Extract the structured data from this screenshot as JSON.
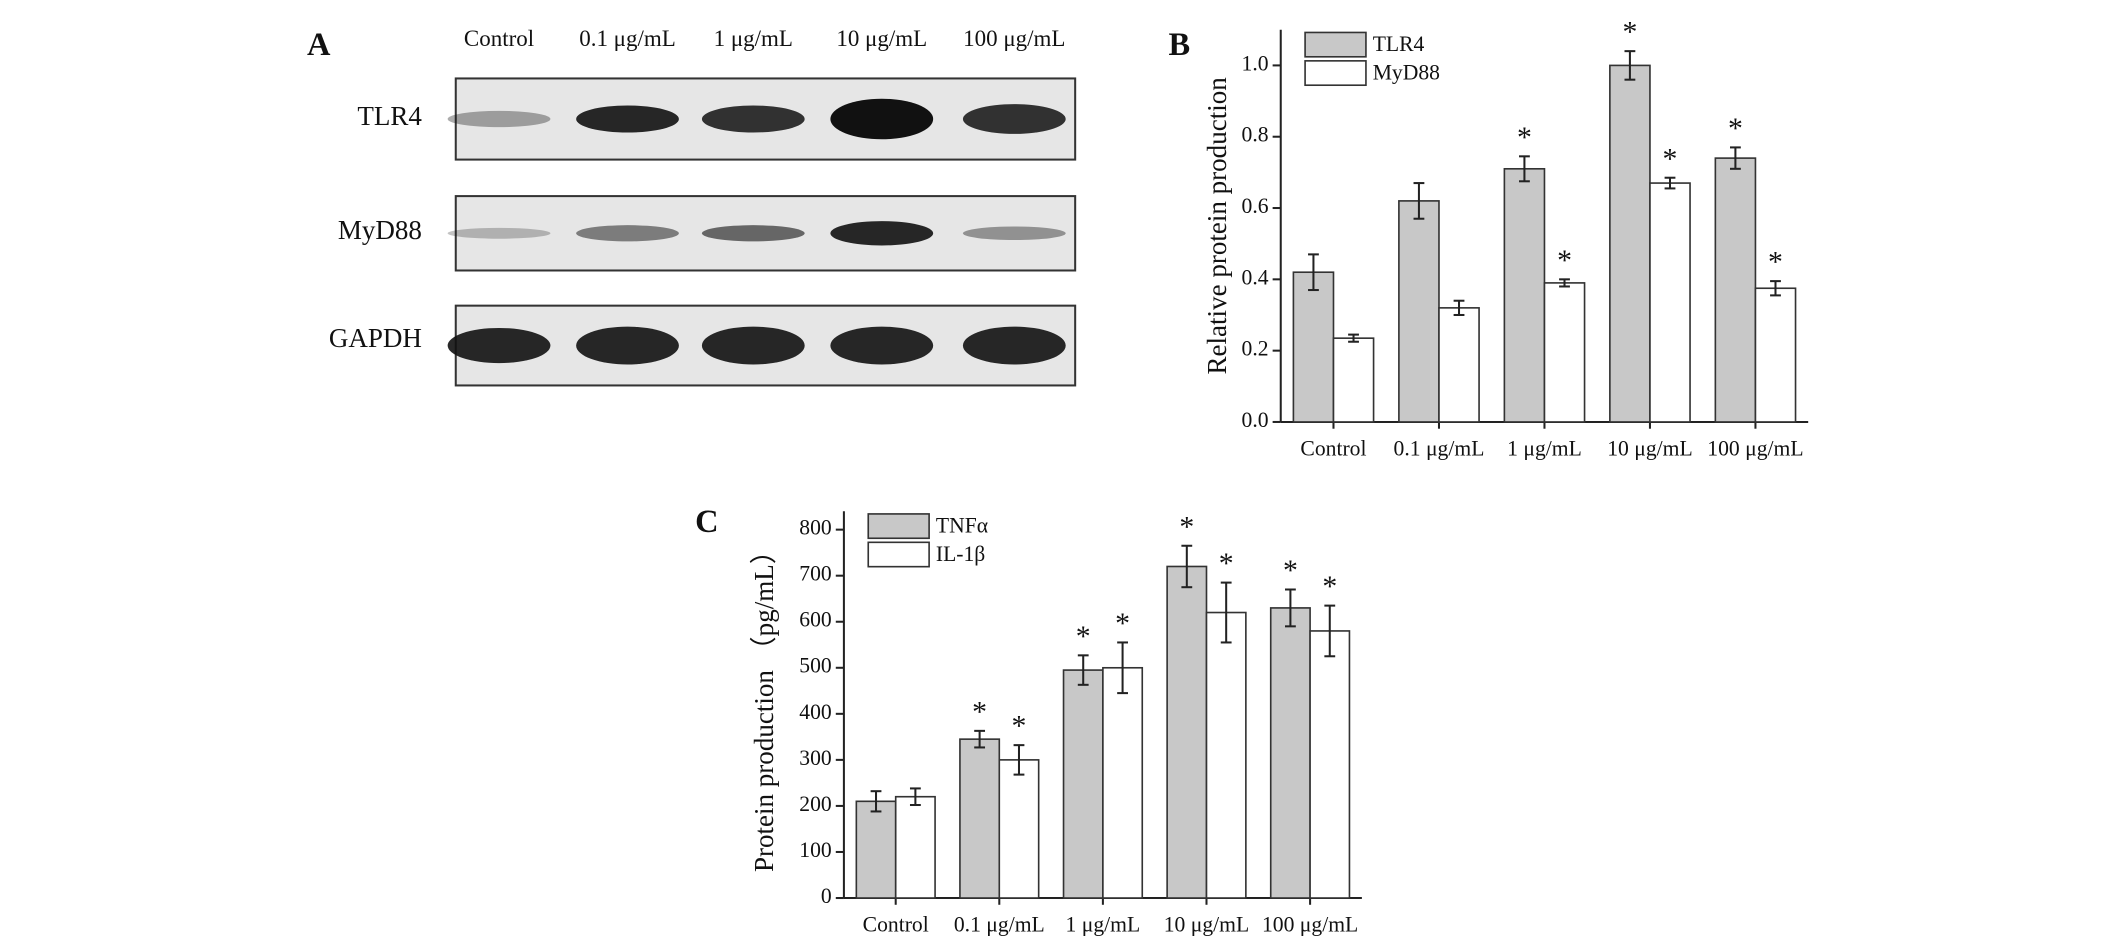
{
  "blot": {
    "label": "A",
    "lanes": [
      "Control",
      "0.1 μg/mL",
      "1 μg/mL",
      "10 μg/mL",
      "100 μg/mL"
    ],
    "proteins": [
      "TLR4",
      "MyD88",
      "GAPDH"
    ]
  },
  "chart_data": [
    {
      "type": "bar",
      "label": "B",
      "ylabel": "Relative protein production",
      "categories": [
        "Control",
        "0.1 μg/mL",
        "1 μg/mL",
        "10 μg/mL",
        "100 μg/mL"
      ],
      "series": [
        {
          "name": "TLR4",
          "color": "#c8c8c8",
          "values": [
            0.42,
            0.62,
            0.71,
            1.0,
            0.74
          ],
          "errors": [
            0.05,
            0.05,
            0.035,
            0.04,
            0.03
          ],
          "markers": [
            null,
            null,
            "*",
            "*",
            "*"
          ]
        },
        {
          "name": "MyD88",
          "color": "#ffffff",
          "values": [
            0.235,
            0.32,
            0.39,
            0.67,
            0.375
          ],
          "errors": [
            0.01,
            0.02,
            0.01,
            0.015,
            0.02
          ],
          "markers": [
            null,
            null,
            "*",
            "*",
            "*"
          ]
        }
      ],
      "ylim": [
        0,
        1.1
      ],
      "yticks": [
        {
          "value": 0,
          "label": "0.0"
        },
        0.2,
        0.4,
        0.6,
        0.8,
        {
          "value": 1,
          "label": "1.0"
        }
      ],
      "legend": "upper left"
    },
    {
      "type": "bar",
      "label": "C",
      "ylabel": "Protein production （pg/mL）",
      "categories": [
        "Control",
        "0.1 μg/mL",
        "1 μg/mL",
        "10 μg/mL",
        "100 μg/mL"
      ],
      "series": [
        {
          "name": "TNFα",
          "color": "#c8c8c8",
          "values": [
            210,
            345,
            495,
            720,
            630
          ],
          "errors": [
            22,
            18,
            32,
            45,
            40
          ],
          "markers": [
            null,
            "*",
            "*",
            "*",
            "*"
          ]
        },
        {
          "name": "IL-1β",
          "color": "#ffffff",
          "values": [
            220,
            300,
            500,
            620,
            580
          ],
          "errors": [
            18,
            32,
            55,
            65,
            55
          ],
          "markers": [
            null,
            "*",
            "*",
            "*",
            "*"
          ]
        }
      ],
      "ylim": [
        0,
        840
      ],
      "yticks": [
        0,
        100,
        200,
        300,
        400,
        500,
        600,
        700,
        800
      ],
      "legend": "upper left"
    }
  ]
}
